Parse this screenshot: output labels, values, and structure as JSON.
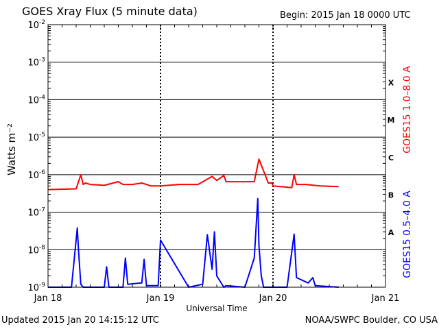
{
  "header": {
    "title": "GOES Xray Flux (5 minute data)",
    "begin": "Begin:  2015 Jan 18 0000 UTC"
  },
  "footer": {
    "updated": "Updated 2015 Jan 20 14:15:12 UTC",
    "credit": "NOAA/SWPC Boulder, CO USA"
  },
  "chart_data": {
    "type": "line",
    "title": "GOES Xray Flux (5 minute data)",
    "xlabel": "Universal Time",
    "ylabel": "Watts m⁻²",
    "y_scale": "log",
    "ylim": [
      1e-09,
      0.01
    ],
    "xlim": [
      "2015-01-18 00:00",
      "2015-01-21 00:00"
    ],
    "x_ticks": [
      "Jan 18",
      "Jan 19",
      "Jan 20",
      "Jan 21"
    ],
    "y_ticks": [
      {
        "value": 0.01,
        "base": "10",
        "exp": "-2"
      },
      {
        "value": 0.001,
        "base": "10",
        "exp": "-3"
      },
      {
        "value": 0.0001,
        "base": "10",
        "exp": "-4"
      },
      {
        "value": 1e-05,
        "base": "10",
        "exp": "-5"
      },
      {
        "value": 1e-06,
        "base": "10",
        "exp": "-6"
      },
      {
        "value": 1e-07,
        "base": "10",
        "exp": "-7"
      },
      {
        "value": 1e-08,
        "base": "10",
        "exp": "-8"
      },
      {
        "value": 1e-09,
        "base": "10",
        "exp": "-9"
      }
    ],
    "flare_classes": [
      {
        "label": "X",
        "value": 0.0003
      },
      {
        "label": "M",
        "value": 3e-05
      },
      {
        "label": "C",
        "value": 3e-06
      },
      {
        "label": "B",
        "value": 3e-07
      },
      {
        "label": "A",
        "value": 3e-08
      }
    ],
    "grid": true,
    "series": [
      {
        "name": "GOES15 1.0–8.0 A",
        "color": "#ff0000",
        "x": [
          "2015-01-18 00:00",
          "2015-01-18 06:00",
          "2015-01-18 07:00",
          "2015-01-18 07:30",
          "2015-01-18 08:00",
          "2015-01-18 09:00",
          "2015-01-18 12:00",
          "2015-01-18 15:00",
          "2015-01-18 16:00",
          "2015-01-18 18:00",
          "2015-01-18 20:00",
          "2015-01-18 22:00",
          "2015-01-19 00:00",
          "2015-01-19 04:00",
          "2015-01-19 08:00",
          "2015-01-19 11:00",
          "2015-01-19 12:00",
          "2015-01-19 13:30",
          "2015-01-19 14:00",
          "2015-01-19 16:00",
          "2015-01-19 20:00",
          "2015-01-19 21:00",
          "2015-01-19 23:00",
          "2015-01-19 23:45",
          "2015-01-20 00:00",
          "2015-01-20 04:00",
          "2015-01-20 04:30",
          "2015-01-20 05:00",
          "2015-01-20 07:00",
          "2015-01-20 10:00",
          "2015-01-20 14:00"
        ],
        "values": [
          4e-07,
          4.2e-07,
          1e-06,
          5.5e-07,
          6e-07,
          5.5e-07,
          5.2e-07,
          6.5e-07,
          5.5e-07,
          5.5e-07,
          6e-07,
          5e-07,
          5e-07,
          5.5e-07,
          5.5e-07,
          9e-07,
          7e-07,
          9.5e-07,
          6.5e-07,
          6.5e-07,
          6.5e-07,
          2.6e-06,
          6e-07,
          6e-07,
          5e-07,
          4.5e-07,
          1e-06,
          5.5e-07,
          5.5e-07,
          5e-07,
          4.8e-07
        ]
      },
      {
        "name": "GOES15 0.5–4.0 A",
        "color": "#0000ff",
        "x": [
          "2015-01-18 00:00",
          "2015-01-18 05:00",
          "2015-01-18 06:15",
          "2015-01-18 06:30",
          "2015-01-18 07:00",
          "2015-01-18 07:30",
          "2015-01-18 12:00",
          "2015-01-18 12:30",
          "2015-01-18 13:00",
          "2015-01-18 16:00",
          "2015-01-18 16:30",
          "2015-01-18 17:00",
          "2015-01-18 20:00",
          "2015-01-18 20:30",
          "2015-01-18 21:00",
          "2015-01-18 23:30",
          "2015-01-19 00:00",
          "2015-01-19 06:00",
          "2015-01-19 09:00",
          "2015-01-19 10:00",
          "2015-01-19 11:00",
          "2015-01-19 11:30",
          "2015-01-19 12:00",
          "2015-01-19 13:30",
          "2015-01-19 14:00",
          "2015-01-19 18:00",
          "2015-01-19 20:00",
          "2015-01-19 20:45",
          "2015-01-19 21:00",
          "2015-01-19 21:30",
          "2015-01-19 22:00",
          "2015-01-20 03:00",
          "2015-01-20 04:30",
          "2015-01-20 05:00",
          "2015-01-20 07:30",
          "2015-01-20 08:30",
          "2015-01-20 09:00",
          "2015-01-20 14:00"
        ],
        "values": [
          1e-09,
          1e-09,
          3.8e-08,
          1e-08,
          1.2e-09,
          1e-09,
          1e-09,
          3.5e-09,
          1e-09,
          1e-09,
          6e-09,
          1.2e-09,
          1.3e-09,
          5.5e-09,
          1.1e-09,
          1.1e-09,
          1.8e-08,
          1e-09,
          1.2e-09,
          2.5e-08,
          3e-09,
          3e-08,
          2e-09,
          1e-09,
          1.1e-09,
          1e-09,
          6e-09,
          2.3e-07,
          1.3e-08,
          2e-09,
          1e-09,
          1e-09,
          2.6e-08,
          1.8e-09,
          1.3e-09,
          1.8e-09,
          1.1e-09,
          1e-09
        ]
      }
    ]
  }
}
